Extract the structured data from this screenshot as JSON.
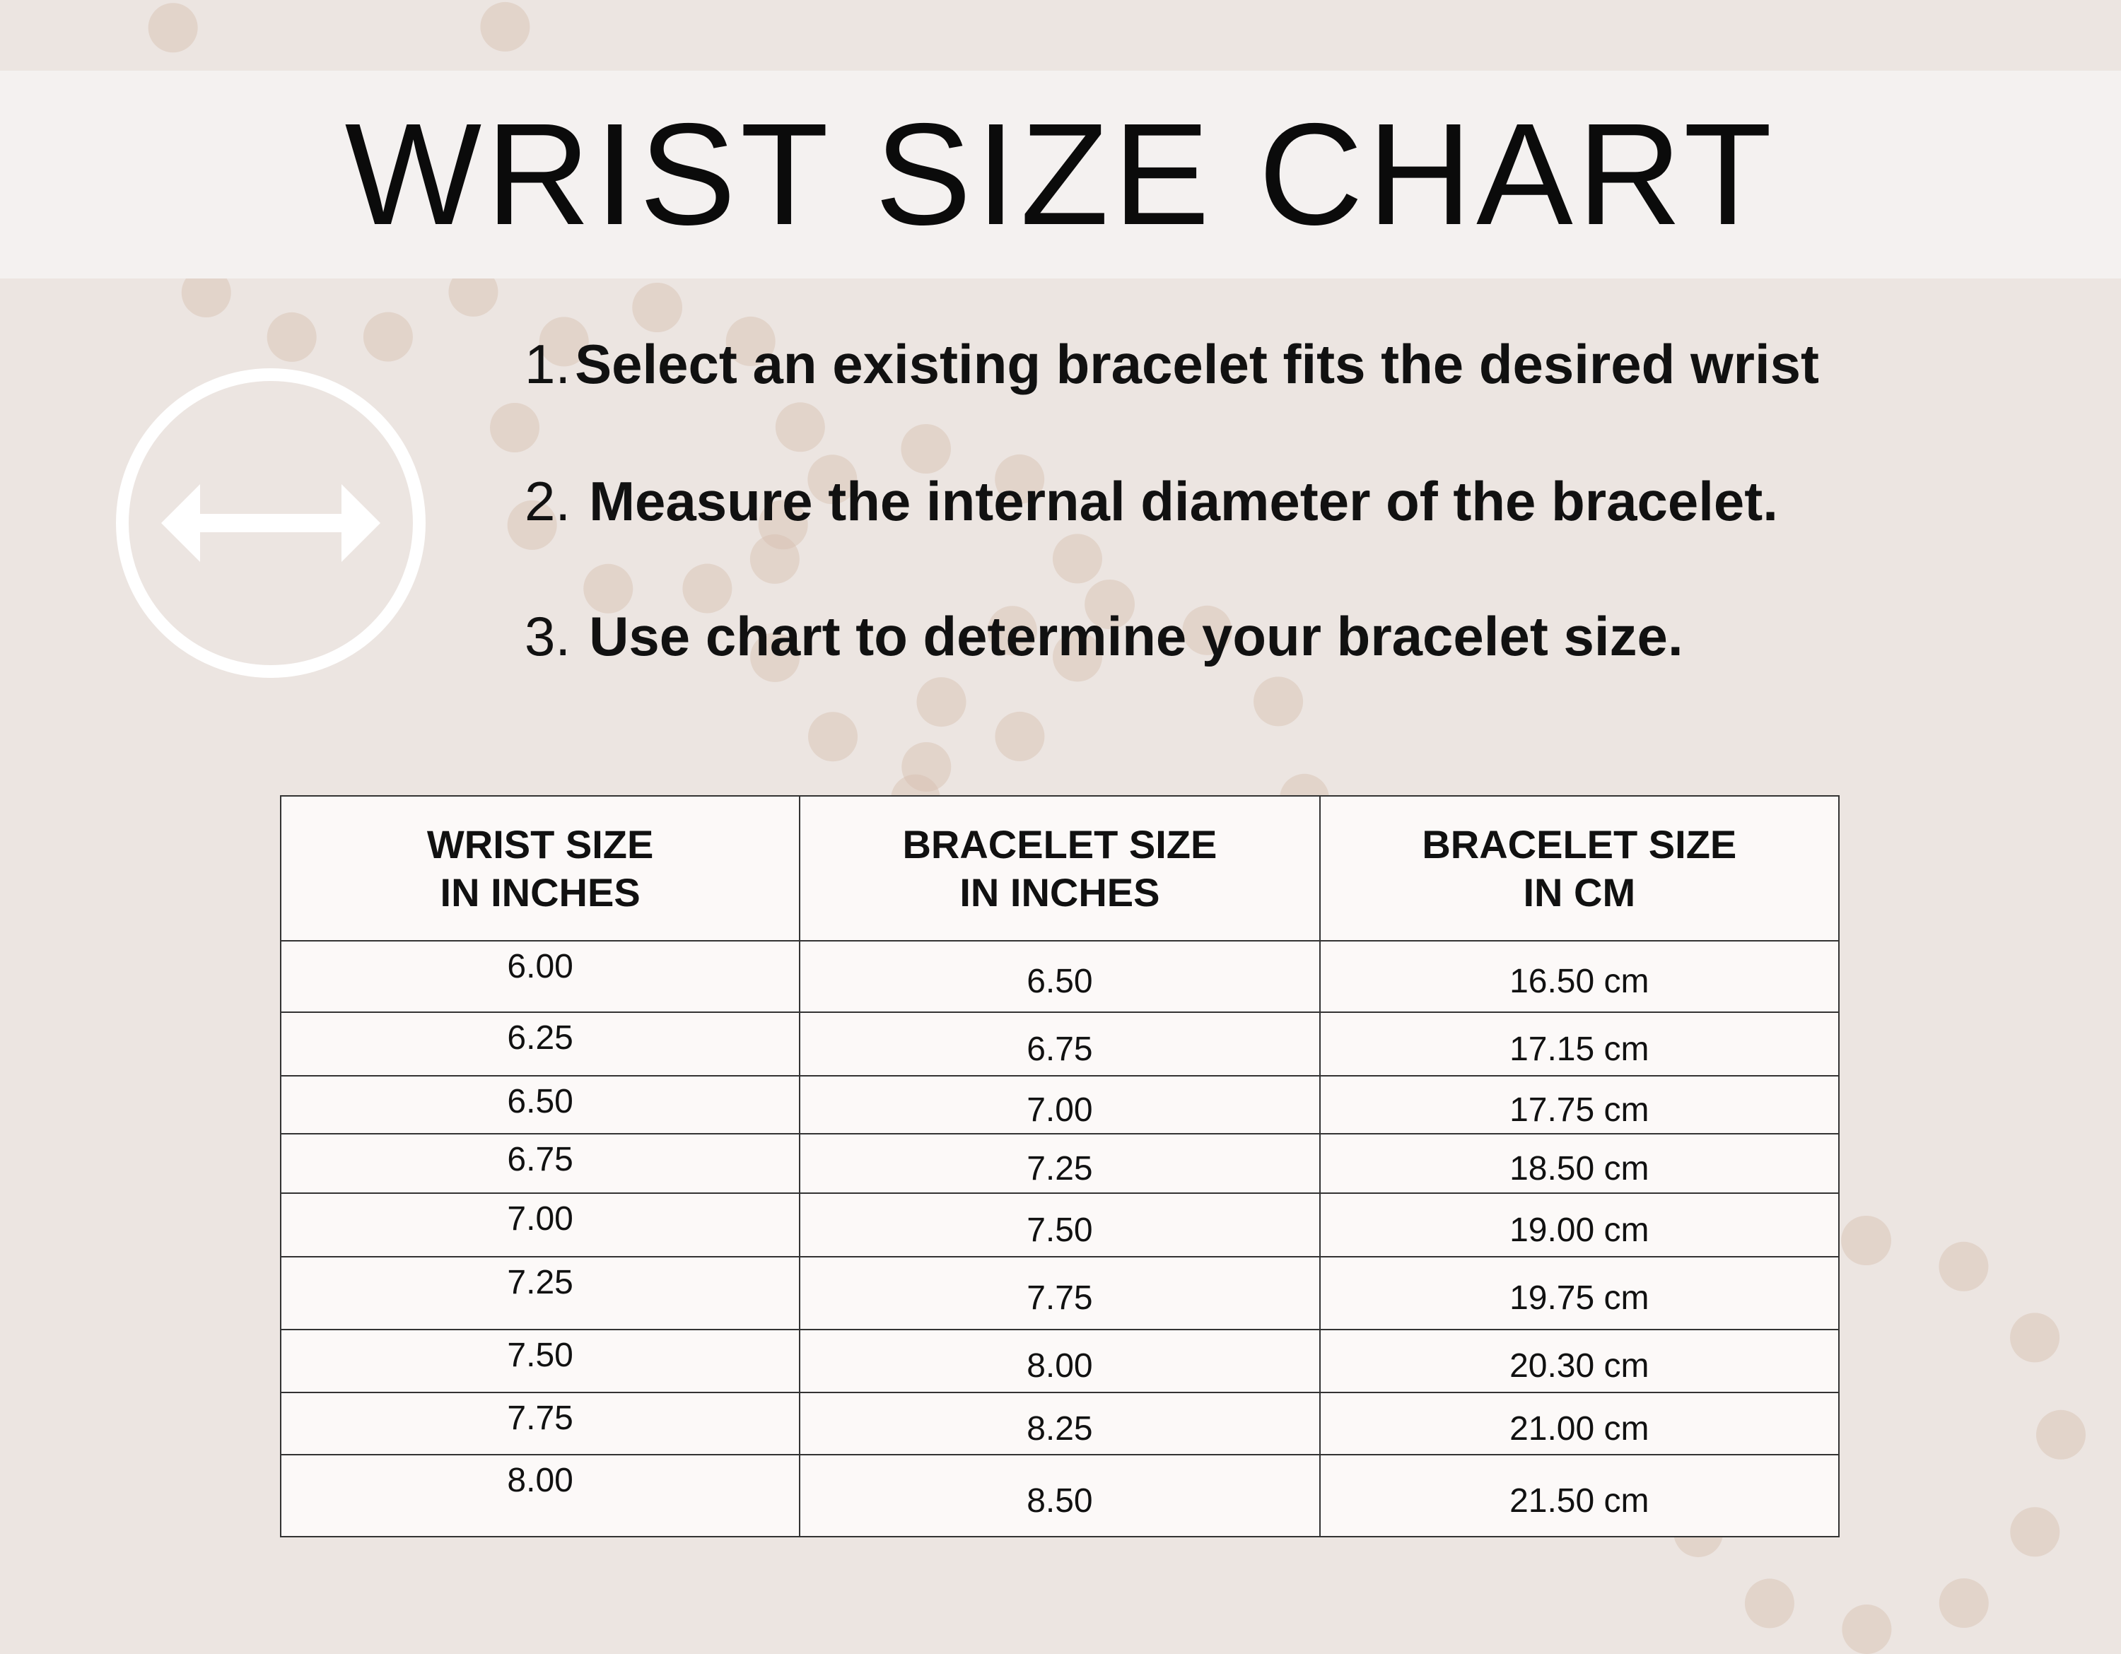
{
  "title": "WRIST SIZE CHART",
  "icon": "horizontal-double-arrow-in-circle",
  "colors": {
    "background": "#ece5e1",
    "banner": "#f4f1f0",
    "text": "#111111",
    "icon": "#ffffff"
  },
  "steps": [
    {
      "num": "1.",
      "text": "Select an existing bracelet fits the desired wrist"
    },
    {
      "num": "2.",
      "text": "Measure the internal diameter of the bracelet."
    },
    {
      "num": "3.",
      "text": "Use chart to determine your bracelet size."
    }
  ],
  "table": {
    "headers": [
      {
        "line1": "WRIST SIZE",
        "line2": "IN INCHES"
      },
      {
        "line1": "BRACELET SIZE",
        "line2": "IN INCHES"
      },
      {
        "line1": "BRACELET SIZE",
        "line2": "IN CM"
      }
    ],
    "rows": [
      [
        "6.00",
        "6.50",
        "16.50 cm"
      ],
      [
        "6.25",
        "6.75",
        "17.15 cm"
      ],
      [
        "6.50",
        "7.00",
        "17.75 cm"
      ],
      [
        "6.75",
        "7.25",
        "18.50 cm"
      ],
      [
        "7.00",
        "7.50",
        "19.00 cm"
      ],
      [
        "7.25",
        "7.75",
        "19.75 cm"
      ],
      [
        "7.50",
        "8.00",
        "20.30 cm"
      ],
      [
        "7.75",
        "8.25",
        "21.00 cm"
      ],
      [
        "8.00",
        "8.50",
        "21.50 cm"
      ]
    ]
  }
}
